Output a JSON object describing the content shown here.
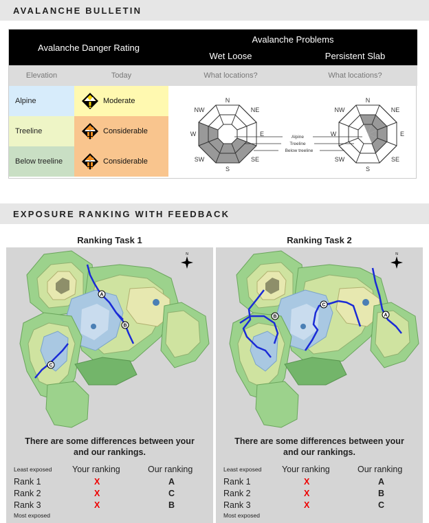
{
  "bulletin": {
    "header": "AVALANCHE BULLETIN",
    "danger_rating_title": "Avalanche Danger Rating",
    "problems_title": "Avalanche Problems",
    "problem_1": "Wet Loose",
    "problem_2": "Persistent Slab",
    "elevation_col": "Elevation",
    "today_col": "Today",
    "locations_1": "What locations?",
    "locations_2": "What locations?",
    "rows": [
      {
        "elevation": "Alpine",
        "rating": "Moderate",
        "color": "#fff9b0",
        "elev_color": "#d7ecfb",
        "icon_color": "#f5d300"
      },
      {
        "elevation": "Treeline",
        "rating": "Considerable",
        "color": "#f9c58e",
        "elev_color": "#eef5c6",
        "icon_color": "#f08c1e"
      },
      {
        "elevation": "Below treeline",
        "rating": "Considerable",
        "color": "#f9c58e",
        "elev_color": "#c9dfc4",
        "icon_color": "#f08c1e"
      }
    ],
    "compass": {
      "n": "N",
      "ne": "NE",
      "e": "E",
      "se": "SE",
      "s": "S",
      "sw": "SW",
      "w": "W",
      "nw": "NW"
    },
    "rose_labels": {
      "alpine": "Alpine",
      "treeline": "Treeline",
      "below": "Below treeline"
    }
  },
  "exposure": {
    "header": "EXPOSURE RANKING WITH FEEDBACK",
    "tasks": [
      {
        "title": "Ranking Task 1",
        "feedback_line1": "There are some differences between your",
        "feedback_line2": "and our rankings.",
        "least": "Least exposed",
        "most": "Most exposed",
        "your_col": "Your ranking",
        "our_col": "Our ranking",
        "ranks": [
          {
            "label": "Rank 1",
            "yours": "X",
            "ours": "A"
          },
          {
            "label": "Rank 2",
            "yours": "X",
            "ours": "C"
          },
          {
            "label": "Rank 3",
            "yours": "X",
            "ours": "B"
          }
        ],
        "routes": [
          "A",
          "B",
          "C"
        ]
      },
      {
        "title": "Ranking Task 2",
        "feedback_line1": "There are some differences between your",
        "feedback_line2": "and our rankings.",
        "least": "Least exposed",
        "most": "Most exposed",
        "your_col": "Your ranking",
        "our_col": "Our ranking",
        "ranks": [
          {
            "label": "Rank 1",
            "yours": "X",
            "ours": "A"
          },
          {
            "label": "Rank 2",
            "yours": "X",
            "ours": "B"
          },
          {
            "label": "Rank 3",
            "yours": "X",
            "ours": "C"
          }
        ],
        "routes": [
          "A",
          "B",
          "C"
        ]
      }
    ],
    "north_label": "N"
  }
}
